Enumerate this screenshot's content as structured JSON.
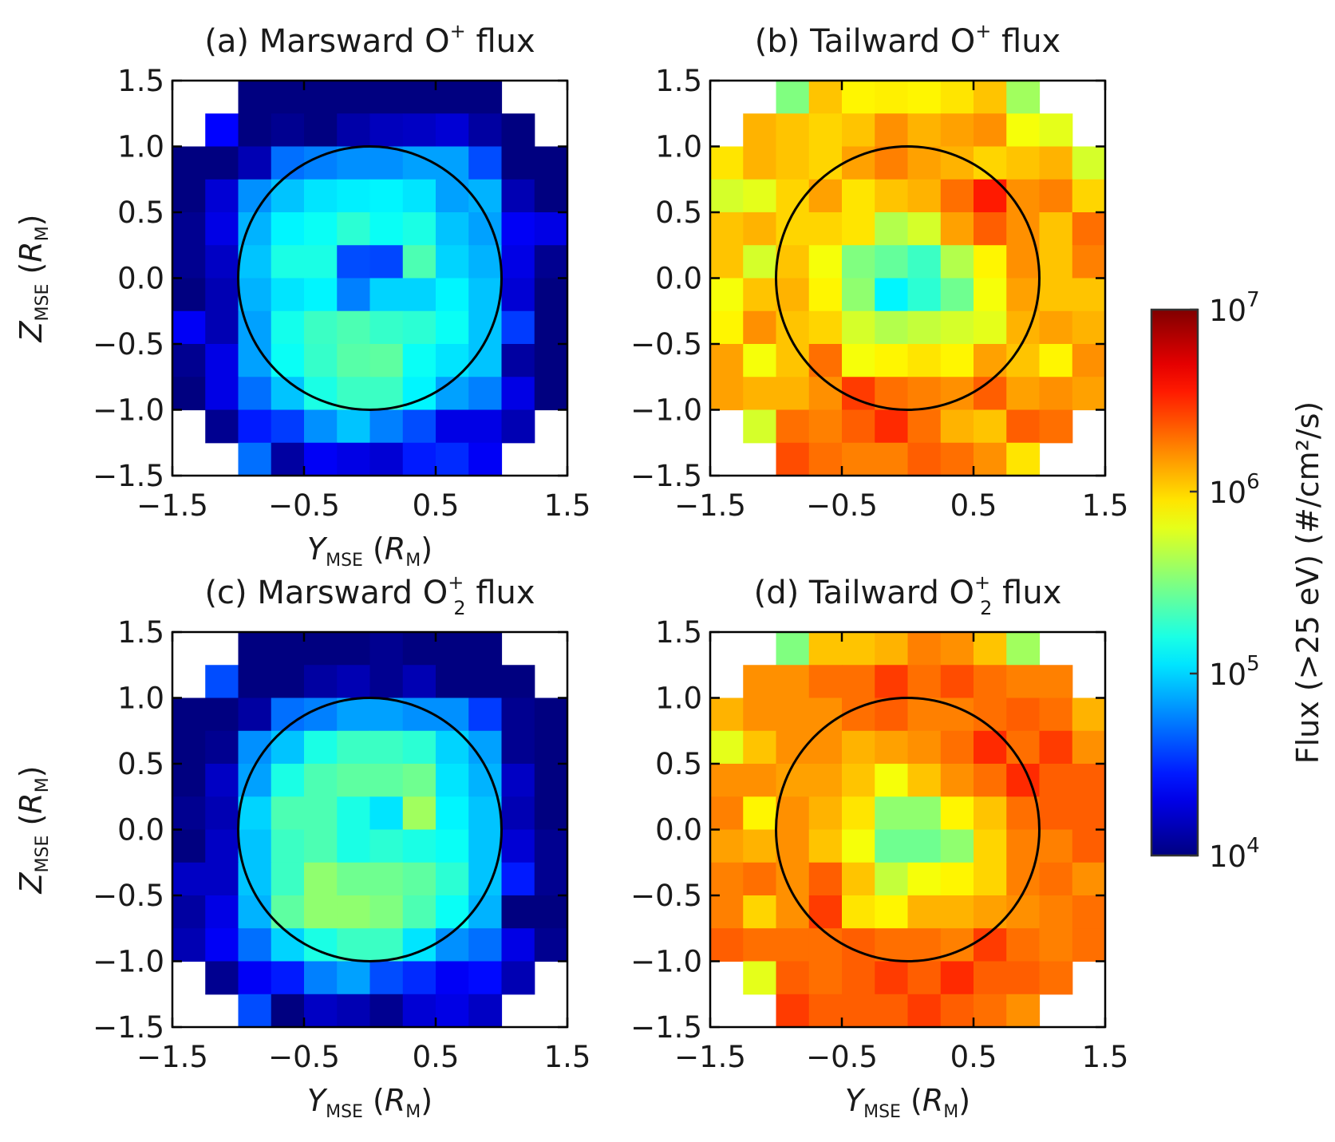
{
  "chart_data": [
    {
      "type": "heatmap",
      "panel": "a",
      "title": "(a) Marsward O⁺ flux",
      "title_parts": [
        "(a) Marsward O",
        "+",
        "",
        " flux"
      ],
      "xlabel": "Y_MSE (R_M)",
      "ylabel": "Z_MSE (R_M)",
      "xlim": [
        -1.5,
        1.5
      ],
      "ylim": [
        -1.5,
        1.5
      ],
      "xticks": [
        "−1.5",
        "−0.5",
        "0.5",
        "1.5"
      ],
      "yticks": [
        "1.5",
        "1.0",
        "0.5",
        "0.0",
        "−0.5",
        "−1.0",
        "−1.5"
      ],
      "bin_size": 0.25,
      "grid_origin": "top-left, rows from Z=1.5 downward, columns from Y=-1.5",
      "circle_radius": 1.0,
      "log10_flux": [
        [
          null,
          null,
          4.0,
          4.0,
          4.0,
          4.0,
          4.0,
          4.0,
          4.0,
          4.0,
          null,
          null
        ],
        [
          null,
          4.38,
          4.0,
          4.05,
          4.0,
          4.12,
          4.18,
          4.2,
          4.25,
          4.1,
          4.0,
          null
        ],
        [
          4.0,
          4.0,
          4.15,
          4.7,
          4.75,
          4.8,
          4.8,
          4.85,
          4.85,
          4.6,
          4.0,
          4.0
        ],
        [
          4.0,
          4.25,
          4.8,
          4.95,
          5.05,
          5.08,
          5.1,
          5.05,
          4.85,
          4.9,
          4.15,
          4.0
        ],
        [
          4.05,
          4.3,
          4.9,
          5.1,
          5.15,
          5.25,
          5.15,
          5.2,
          4.95,
          4.85,
          4.35,
          4.3
        ],
        [
          4.05,
          4.2,
          4.95,
          5.2,
          5.2,
          4.6,
          4.58,
          5.35,
          5.0,
          4.9,
          4.3,
          4.05
        ],
        [
          4.0,
          4.15,
          4.9,
          5.05,
          5.1,
          4.75,
          5.0,
          5.0,
          5.1,
          4.95,
          4.25,
          4.0
        ],
        [
          4.35,
          4.15,
          4.85,
          5.18,
          5.3,
          5.35,
          5.28,
          5.25,
          5.15,
          4.95,
          4.55,
          4.0
        ],
        [
          4.05,
          4.3,
          4.85,
          5.15,
          5.28,
          5.38,
          5.4,
          5.15,
          5.05,
          4.95,
          4.1,
          4.0
        ],
        [
          4.0,
          4.3,
          4.7,
          4.95,
          5.2,
          5.3,
          5.3,
          5.1,
          4.85,
          4.75,
          4.3,
          4.0
        ],
        [
          null,
          4.05,
          4.45,
          4.55,
          4.8,
          4.95,
          4.75,
          4.6,
          4.3,
          4.3,
          4.15,
          null
        ],
        [
          null,
          null,
          4.7,
          4.1,
          4.35,
          4.3,
          4.25,
          4.45,
          4.5,
          4.35,
          null,
          null
        ]
      ]
    },
    {
      "type": "heatmap",
      "panel": "b",
      "title": "(b) Tailward O⁺ flux",
      "title_parts": [
        "(b) Tailward O",
        "+",
        "",
        " flux"
      ],
      "xlabel": "",
      "ylabel": "",
      "xlim": [
        -1.5,
        1.5
      ],
      "ylim": [
        -1.5,
        1.5
      ],
      "xticks": [
        "−1.5",
        "−0.5",
        "0.5",
        "1.5"
      ],
      "yticks": [
        "1.5",
        "1.0",
        "0.5",
        "0.0",
        "−0.5",
        "−1.0",
        "−1.5"
      ],
      "bin_size": 0.25,
      "circle_radius": 1.0,
      "log10_flux": [
        [
          null,
          null,
          5.5,
          6.05,
          5.9,
          5.92,
          5.9,
          5.95,
          6.05,
          5.6,
          null,
          null
        ],
        [
          null,
          6.1,
          6.05,
          6.0,
          6.05,
          6.2,
          6.1,
          6.15,
          6.2,
          5.85,
          5.8,
          null
        ],
        [
          5.95,
          6.1,
          6.05,
          6.0,
          6.15,
          6.25,
          6.15,
          6.1,
          6.0,
          6.05,
          6.1,
          5.75
        ],
        [
          5.75,
          5.8,
          6.0,
          6.15,
          5.95,
          6.05,
          6.1,
          6.3,
          6.55,
          6.2,
          6.25,
          6.0
        ],
        [
          6.05,
          6.1,
          6.0,
          6.0,
          5.95,
          5.65,
          5.75,
          6.15,
          6.35,
          6.2,
          6.05,
          6.3
        ],
        [
          6.05,
          5.75,
          6.05,
          5.85,
          5.5,
          5.42,
          5.3,
          5.65,
          5.9,
          6.2,
          6.05,
          6.25
        ],
        [
          5.85,
          6.05,
          6.1,
          5.9,
          5.55,
          5.1,
          5.25,
          5.45,
          5.85,
          6.15,
          6.05,
          6.05
        ],
        [
          5.9,
          6.2,
          6.05,
          6.0,
          5.75,
          5.65,
          5.7,
          5.75,
          5.8,
          6.1,
          6.15,
          6.1
        ],
        [
          6.15,
          5.85,
          6.05,
          6.3,
          5.85,
          5.9,
          5.95,
          5.9,
          6.15,
          6.05,
          5.9,
          6.2
        ],
        [
          6.15,
          6.1,
          6.1,
          6.2,
          6.45,
          6.3,
          6.25,
          6.2,
          6.35,
          6.15,
          6.2,
          6.15
        ],
        [
          null,
          5.75,
          6.3,
          6.25,
          6.35,
          6.5,
          6.3,
          6.1,
          6.05,
          6.35,
          6.3,
          null
        ],
        [
          null,
          null,
          6.4,
          6.3,
          6.25,
          6.25,
          6.35,
          6.3,
          6.2,
          5.95,
          null,
          null
        ]
      ]
    },
    {
      "type": "heatmap",
      "panel": "c",
      "title": "(c) Marsward O₂⁺ flux",
      "title_parts": [
        "(c) Marsward O",
        "+",
        "2",
        " flux"
      ],
      "xlabel": "Y_MSE (R_M)",
      "ylabel": "Z_MSE (R_M)",
      "xlim": [
        -1.5,
        1.5
      ],
      "ylim": [
        -1.5,
        1.5
      ],
      "xticks": [
        "−1.5",
        "−0.5",
        "0.5",
        "1.5"
      ],
      "yticks": [
        "1.5",
        "1.0",
        "0.5",
        "0.0",
        "−0.5",
        "−1.0",
        "−1.5"
      ],
      "bin_size": 0.25,
      "circle_radius": 1.0,
      "log10_flux": [
        [
          null,
          null,
          4.0,
          4.0,
          4.0,
          4.0,
          4.05,
          4.0,
          4.0,
          4.0,
          null,
          null
        ],
        [
          null,
          4.6,
          4.0,
          4.0,
          4.1,
          4.15,
          4.05,
          4.15,
          4.0,
          4.0,
          4.0,
          null
        ],
        [
          4.0,
          4.0,
          4.1,
          4.7,
          4.75,
          4.85,
          4.85,
          4.8,
          4.8,
          4.55,
          4.05,
          4.0
        ],
        [
          4.0,
          4.05,
          4.8,
          4.95,
          5.2,
          5.3,
          5.3,
          5.25,
          5.0,
          4.85,
          4.05,
          4.0
        ],
        [
          4.0,
          4.2,
          4.85,
          5.2,
          5.35,
          5.4,
          5.4,
          5.45,
          5.05,
          4.9,
          4.2,
          4.0
        ],
        [
          4.05,
          4.15,
          5.0,
          5.35,
          5.35,
          5.2,
          5.05,
          5.6,
          5.1,
          4.95,
          4.15,
          4.0
        ],
        [
          4.0,
          4.2,
          4.95,
          5.3,
          5.35,
          5.2,
          5.25,
          5.2,
          5.15,
          4.95,
          4.25,
          4.05
        ],
        [
          4.2,
          4.2,
          4.95,
          5.3,
          5.55,
          5.45,
          5.45,
          5.4,
          5.25,
          4.95,
          4.45,
          4.05
        ],
        [
          4.1,
          4.3,
          4.9,
          5.4,
          5.55,
          5.55,
          5.5,
          5.35,
          5.15,
          4.9,
          4.0,
          4.0
        ],
        [
          4.15,
          4.35,
          4.7,
          5.0,
          5.2,
          5.3,
          5.3,
          5.05,
          4.8,
          4.7,
          4.3,
          4.05
        ],
        [
          null,
          4.05,
          4.35,
          4.45,
          4.75,
          4.85,
          4.6,
          4.5,
          4.35,
          4.4,
          4.15,
          null
        ],
        [
          null,
          null,
          4.6,
          4.0,
          4.2,
          4.15,
          4.05,
          4.25,
          4.3,
          4.2,
          null,
          null
        ]
      ]
    },
    {
      "type": "heatmap",
      "panel": "d",
      "title": "(d) Tailward O₂⁺ flux",
      "title_parts": [
        "(d) Tailward O",
        "+",
        "2",
        " flux"
      ],
      "xlabel": "Y_MSE (R_M)",
      "ylabel": "",
      "xlim": [
        -1.5,
        1.5
      ],
      "ylim": [
        -1.5,
        1.5
      ],
      "xticks": [
        "−1.5",
        "−0.5",
        "0.5",
        "1.5"
      ],
      "yticks": [
        "1.5",
        "1.0",
        "0.5",
        "0.0",
        "−0.5",
        "−1.0",
        "−1.5"
      ],
      "bin_size": 0.25,
      "circle_radius": 1.0,
      "log10_flux": [
        [
          null,
          null,
          5.5,
          6.05,
          6.05,
          6.1,
          6.25,
          6.2,
          6.05,
          5.6,
          null,
          null
        ],
        [
          null,
          6.2,
          6.2,
          6.3,
          6.3,
          6.45,
          6.3,
          6.4,
          6.3,
          6.25,
          6.25,
          null
        ],
        [
          6.1,
          6.2,
          6.2,
          6.2,
          6.3,
          6.35,
          6.25,
          6.25,
          6.3,
          6.35,
          6.3,
          6.1
        ],
        [
          5.8,
          6.05,
          6.2,
          6.2,
          6.1,
          6.15,
          6.2,
          6.3,
          6.5,
          6.3,
          6.45,
          6.2
        ],
        [
          6.2,
          6.2,
          6.15,
          6.15,
          6.05,
          5.85,
          6.05,
          6.2,
          6.3,
          6.5,
          6.35,
          6.35
        ],
        [
          6.25,
          5.9,
          6.2,
          6.1,
          5.95,
          5.55,
          5.55,
          5.9,
          6.05,
          6.3,
          6.35,
          6.35
        ],
        [
          6.15,
          6.1,
          6.2,
          6.05,
          5.85,
          5.45,
          5.45,
          5.55,
          6.0,
          6.25,
          6.25,
          6.35
        ],
        [
          6.25,
          6.3,
          6.2,
          6.35,
          6.05,
          5.7,
          5.85,
          5.9,
          6.0,
          6.25,
          6.3,
          6.2
        ],
        [
          6.25,
          6.0,
          6.2,
          6.45,
          5.95,
          5.9,
          6.1,
          6.1,
          6.15,
          6.2,
          6.25,
          6.3
        ],
        [
          6.35,
          6.3,
          6.3,
          6.3,
          6.35,
          6.3,
          6.3,
          6.25,
          6.45,
          6.3,
          6.25,
          6.3
        ],
        [
          null,
          5.8,
          6.35,
          6.3,
          6.35,
          6.45,
          6.35,
          6.5,
          6.35,
          6.35,
          6.3,
          null
        ],
        [
          null,
          null,
          6.45,
          6.35,
          6.35,
          6.35,
          6.45,
          6.35,
          6.3,
          6.2,
          null,
          null
        ]
      ]
    }
  ],
  "colorbar": {
    "label": "Flux (>25 eV) (#/cm²/s)",
    "scale": "log",
    "range_log10": [
      4,
      7
    ],
    "tick_labels": [
      {
        "base": "10",
        "exp": "7",
        "log10": 7
      },
      {
        "base": "10",
        "exp": "6",
        "log10": 6
      },
      {
        "base": "10",
        "exp": "5",
        "log10": 5
      },
      {
        "base": "10",
        "exp": "4",
        "log10": 4
      }
    ],
    "colormap": "jet"
  },
  "axis_text": {
    "z_letter": "Z",
    "z_sub": "MSE",
    "y_letter": "Y",
    "y_sub": "MSE",
    "unit_open": "(",
    "unit_letter": "R",
    "unit_sub": "M",
    "unit_close": ")"
  }
}
